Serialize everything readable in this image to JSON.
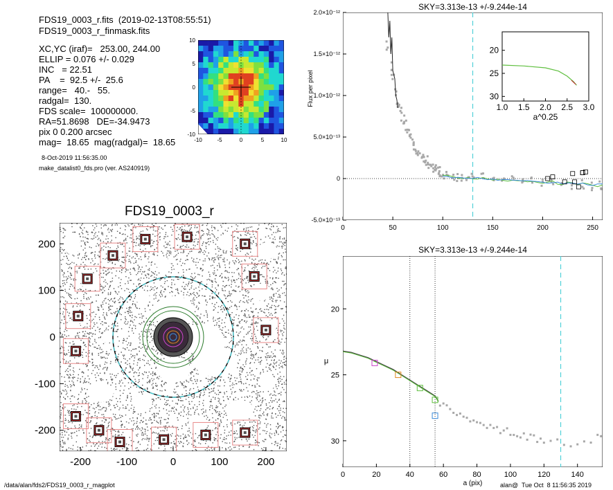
{
  "header": {
    "line1": "FDS19_0003_r.fits  (2019-02-13T08:55:51)",
    "line2": "FDS19_0003_r_finmask.fits",
    "params": [
      "XC,YC (iraf)=   253.00, 244.00",
      "ELLIP = 0.076 +/- 0.029",
      "INC   = 22.51",
      "PA    =  92.5 +/-  25.6",
      "range=   40.-   55.",
      "radgal=  130.",
      "FDS scale=  100000000.",
      "RA=51.8698   DE=-34.9473",
      "pix 0 0.200 arcsec",
      "mag=  18.65  mag(radgal)=  18.65"
    ],
    "date": "8-Oct-2019 11:56:35.00",
    "program": "make_datalist0_fds.pro (ver. AS240919)"
  },
  "footer": {
    "left": "/data/alan/fds2/FDS19_0003_r_magplot",
    "right": "alan@  Tue Oct  8 11:56:35 2019"
  },
  "image_title": "FDS19_0003_r",
  "colors": {
    "inner_sky": "#d23c3c",
    "outer_sky": "#e88888",
    "cyan_dashed": "#4fd0d8",
    "model_green": "#5fbf3f",
    "data_grey": "#a8a8a8",
    "magenta": "#cc44cc",
    "orange": "#e08a20",
    "blue": "#3a8ad8"
  },
  "chart_data": [
    {
      "type": "heatmap",
      "name": "central-thumbnail",
      "xlim": [
        -10,
        10
      ],
      "ylim": [
        -10,
        10
      ],
      "xticks": [
        "-10",
        "-5",
        "0",
        "5",
        "10"
      ],
      "yticks": [
        "-10",
        "-5",
        "0",
        "5",
        "10"
      ]
    },
    {
      "type": "scatter",
      "name": "mask-image",
      "title": "FDS19_0003_r",
      "xlim": [
        -245,
        245
      ],
      "ylim": [
        -245,
        245
      ],
      "xticks": [
        "-200",
        "-100",
        "0",
        "100",
        "200"
      ],
      "yticks": [
        "-200",
        "-100",
        "0",
        "100",
        "200"
      ],
      "sky_boxes": [
        [
          -160,
          -200
        ],
        [
          -210,
          -170
        ],
        [
          -115,
          -225
        ],
        [
          -20,
          -220
        ],
        [
          70,
          -210
        ],
        [
          155,
          -205
        ],
        [
          -185,
          125
        ],
        [
          -205,
          45
        ],
        [
          -210,
          -30
        ],
        [
          -130,
          175
        ],
        [
          -60,
          210
        ],
        [
          30,
          215
        ],
        [
          155,
          200
        ],
        [
          175,
          130
        ],
        [
          200,
          15
        ]
      ],
      "radgal_circle": 130
    },
    {
      "type": "scatter",
      "name": "flux-profile",
      "title": "SKY=3.313e-13 +/-9.244e-14",
      "xlabel": "",
      "ylabel": "Flux per pixel",
      "xlim": [
        0,
        260
      ],
      "ylim": [
        -5e-13,
        2e-12
      ],
      "xticks": [
        "0",
        "50",
        "100",
        "150",
        "200",
        "250"
      ],
      "yticks": [
        "-5.0×10⁻¹³",
        "0",
        "5.0×10⁻¹³",
        "1.0×10⁻¹²",
        "1.5×10⁻¹²",
        "2.0×10⁻¹²"
      ],
      "vline_dashed_cyan": 130,
      "points": [
        [
          45,
          1.6e-12
        ],
        [
          48,
          1.35e-12
        ],
        [
          50,
          1.2e-12
        ],
        [
          52,
          1.05e-12
        ],
        [
          54,
          9.5e-13
        ],
        [
          56,
          8.8e-13
        ],
        [
          58,
          8e-13
        ],
        [
          60,
          7.2e-13
        ],
        [
          62,
          6.6e-13
        ],
        [
          64,
          6e-13
        ],
        [
          66,
          5.4e-13
        ],
        [
          68,
          5e-13
        ],
        [
          70,
          4.4e-13
        ],
        [
          72,
          4e-13
        ],
        [
          74,
          3.6e-13
        ],
        [
          76,
          3.2e-13
        ],
        [
          78,
          2.8e-13
        ],
        [
          80,
          2.6e-13
        ],
        [
          82,
          2.3e-13
        ],
        [
          84,
          2.1e-13
        ],
        [
          86,
          1.8e-13
        ],
        [
          88,
          1.6e-13
        ],
        [
          90,
          1.4e-13
        ],
        [
          92,
          1.2e-13
        ],
        [
          94,
          1e-13
        ],
        [
          96,
          9e-14
        ],
        [
          98,
          8e-14
        ],
        [
          100,
          6e-14
        ],
        [
          105,
          5e-14
        ],
        [
          110,
          4e-14
        ],
        [
          115,
          3e-14
        ],
        [
          120,
          3e-14
        ],
        [
          125,
          2e-14
        ],
        [
          130,
          2e-14
        ],
        [
          140,
          1e-14
        ],
        [
          150,
          0.0
        ],
        [
          160,
          -1e-14
        ],
        [
          170,
          0.0
        ],
        [
          180,
          -2e-14
        ],
        [
          190,
          -3e-14
        ],
        [
          200,
          -4e-14
        ],
        [
          210,
          -5e-14
        ],
        [
          220,
          -6e-14
        ],
        [
          230,
          -7e-14
        ],
        [
          240,
          -7e-14
        ],
        [
          250,
          -8e-14
        ],
        [
          258,
          -8e-14
        ]
      ],
      "inset": {
        "xlabel": "a^0.25",
        "xlim": [
          1.0,
          3.0
        ],
        "ylim": [
          31,
          16
        ],
        "xticks": [
          "1.0",
          "1.5",
          "2.0",
          "2.5",
          "3.0"
        ],
        "yticks": [
          "20",
          "25",
          "30"
        ],
        "curve": [
          [
            1.0,
            23.2
          ],
          [
            1.5,
            23.4
          ],
          [
            2.0,
            23.8
          ],
          [
            2.3,
            24.5
          ],
          [
            2.5,
            25.6
          ],
          [
            2.65,
            26.8
          ],
          [
            2.72,
            27.6
          ]
        ]
      }
    },
    {
      "type": "scatter",
      "name": "surface-brightness-profile",
      "title": "SKY=3.313e-13 +/-9.244e-14",
      "xlabel": "a (pix)",
      "ylabel": "μ",
      "xlim": [
        0,
        155
      ],
      "ylim": [
        32,
        16
      ],
      "xticks": [
        "0",
        "20",
        "40",
        "60",
        "80",
        "100",
        "120",
        "140"
      ],
      "yticks": [
        "20",
        "25",
        "30"
      ],
      "vlines_dotted": [
        40,
        55
      ],
      "vline_dashed_cyan": 130,
      "profile": [
        [
          0,
          23.2
        ],
        [
          5,
          23.3
        ],
        [
          10,
          23.5
        ],
        [
          15,
          23.7
        ],
        [
          20,
          24.0
        ],
        [
          25,
          24.3
        ],
        [
          30,
          24.6
        ],
        [
          35,
          25.0
        ],
        [
          40,
          25.4
        ],
        [
          45,
          25.8
        ],
        [
          50,
          26.2
        ],
        [
          55,
          26.6
        ],
        [
          57,
          27.0
        ]
      ],
      "points": [
        [
          58,
          27.2
        ],
        [
          60,
          27.4
        ],
        [
          62,
          27.5
        ],
        [
          64,
          27.7
        ],
        [
          66,
          27.8
        ],
        [
          68,
          27.9
        ],
        [
          70,
          28.0
        ],
        [
          72,
          28.1
        ],
        [
          74,
          28.3
        ],
        [
          76,
          28.4
        ],
        [
          78,
          28.5
        ],
        [
          80,
          28.6
        ],
        [
          82,
          28.7
        ],
        [
          84,
          28.8
        ],
        [
          86,
          28.8
        ],
        [
          88,
          28.9
        ],
        [
          90,
          29.0
        ],
        [
          92,
          29.1
        ],
        [
          94,
          29.2
        ],
        [
          96,
          29.2
        ],
        [
          98,
          29.3
        ],
        [
          100,
          29.4
        ],
        [
          102,
          29.4
        ],
        [
          104,
          29.5
        ],
        [
          106,
          29.6
        ],
        [
          108,
          29.6
        ],
        [
          110,
          29.7
        ],
        [
          112,
          29.7
        ],
        [
          114,
          29.8
        ],
        [
          116,
          29.9
        ],
        [
          118,
          29.9
        ],
        [
          120,
          30.0
        ],
        [
          124,
          30.0
        ],
        [
          128,
          30.1
        ],
        [
          132,
          30.1
        ],
        [
          136,
          30.2
        ],
        [
          140,
          30.3
        ],
        [
          144,
          30.2
        ],
        [
          148,
          30.1
        ],
        [
          152,
          29.8
        ],
        [
          154,
          29.6
        ]
      ],
      "markers": [
        [
          19,
          24.1,
          "magenta"
        ],
        [
          33,
          25.0,
          "orange"
        ],
        [
          46,
          26.0,
          "green"
        ],
        [
          55,
          26.9,
          "green"
        ],
        [
          55,
          28.1,
          "blue"
        ]
      ]
    }
  ]
}
